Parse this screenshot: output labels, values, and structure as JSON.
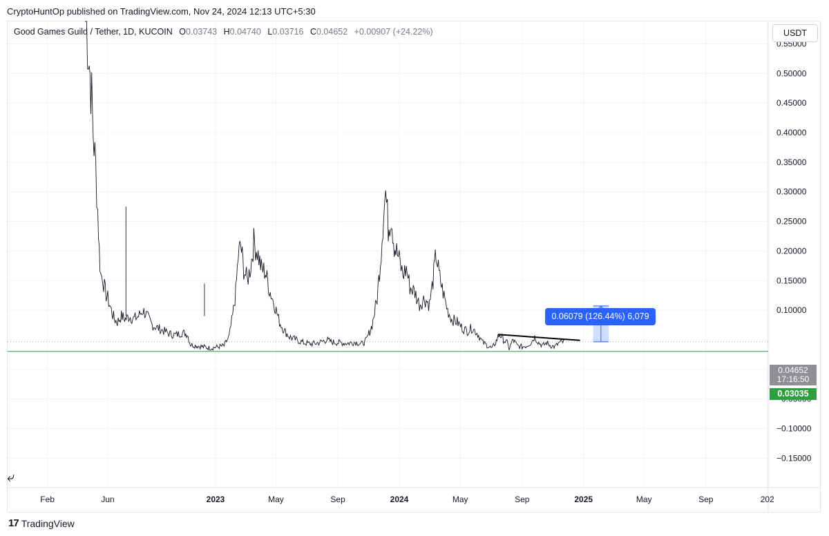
{
  "published": "CryptoHuntOp published on TradingView.com, Nov 24, 2024 12:13 UTC+5:30",
  "legend": {
    "symbol": "Good Games Guild / Tether, 1D, KUCOIN",
    "open_label": "O",
    "open": "0.03743",
    "high_label": "H",
    "high": "0.04740",
    "low_label": "L",
    "low": "0.03716",
    "close_label": "C",
    "close": "0.04652",
    "change": "+0.00907 (+24.22%)"
  },
  "currency_button": "USDT",
  "price_box": {
    "price": "0.04652",
    "countdown": "17:16:50"
  },
  "support_level_label": "0.03035",
  "measure_label": "0.06079 (126.44%) 6,079",
  "footer": {
    "logo": "17",
    "brand": "TradingView"
  },
  "colors": {
    "price_line": "#131722",
    "support": "#2e9e3e",
    "measure": "#2962ff",
    "trendline": "#000000"
  },
  "chart_data": {
    "type": "line",
    "title": "Good Games Guild / Tether, 1D, KUCOIN",
    "y_ticks": [
      "0.55000",
      "0.50000",
      "0.45000",
      "0.40000",
      "0.35000",
      "0.30000",
      "0.25000",
      "0.20000",
      "0.15000",
      "0.10000",
      "−0.05000",
      "−0.10000",
      "−0.15000"
    ],
    "x_ticks": [
      {
        "label": "Feb",
        "date": "2022-02-01",
        "bold": false
      },
      {
        "label": "Jun",
        "date": "2022-06-01",
        "bold": false
      },
      {
        "label": "2023",
        "date": "2023-01-01",
        "bold": true
      },
      {
        "label": "May",
        "date": "2023-05-01",
        "bold": false
      },
      {
        "label": "Sep",
        "date": "2023-09-01",
        "bold": false
      },
      {
        "label": "2024",
        "date": "2024-01-01",
        "bold": true
      },
      {
        "label": "May",
        "date": "2024-05-01",
        "bold": false
      },
      {
        "label": "Sep",
        "date": "2024-09-01",
        "bold": false
      },
      {
        "label": "2025",
        "date": "2025-01-01",
        "bold": true
      },
      {
        "label": "May",
        "date": "2025-05-01",
        "bold": false
      },
      {
        "label": "Sep",
        "date": "2025-09-01",
        "bold": false
      },
      {
        "label": "202",
        "date": "2026-01-01",
        "bold": false
      }
    ],
    "ylim": [
      -0.15,
      0.6
    ],
    "grid": true,
    "series": [
      {
        "points": [
          [
            "2022-04-17",
            0.62
          ],
          [
            "2022-04-20",
            0.58
          ],
          [
            "2022-04-25",
            0.52
          ],
          [
            "2022-04-30",
            0.46
          ],
          [
            "2022-05-03",
            0.4
          ],
          [
            "2022-05-08",
            0.34
          ],
          [
            "2022-05-12",
            0.27
          ],
          [
            "2022-05-15",
            0.2
          ],
          [
            "2022-05-18",
            0.16
          ],
          [
            "2022-05-22",
            0.155
          ],
          [
            "2022-05-27",
            0.13
          ],
          [
            "2022-06-01",
            0.12
          ],
          [
            "2022-06-08",
            0.1
          ],
          [
            "2022-06-14",
            0.085
          ],
          [
            "2022-06-20",
            0.08
          ],
          [
            "2022-06-28",
            0.09
          ],
          [
            "2022-07-06",
            0.085
          ],
          [
            "2022-07-14",
            0.09
          ],
          [
            "2022-07-22",
            0.085
          ],
          [
            "2022-08-01",
            0.09
          ],
          [
            "2022-08-10",
            0.1
          ],
          [
            "2022-08-18",
            0.09
          ],
          [
            "2022-08-28",
            0.075
          ],
          [
            "2022-09-08",
            0.07
          ],
          [
            "2022-09-20",
            0.065
          ],
          [
            "2022-10-02",
            0.06
          ],
          [
            "2022-10-14",
            0.058
          ],
          [
            "2022-10-26",
            0.062
          ],
          [
            "2022-11-06",
            0.06
          ],
          [
            "2022-11-12",
            0.042
          ],
          [
            "2022-11-25",
            0.04
          ],
          [
            "2022-12-08",
            0.038
          ],
          [
            "2022-12-22",
            0.036
          ],
          [
            "2023-01-05",
            0.038
          ],
          [
            "2023-01-18",
            0.04
          ],
          [
            "2023-01-28",
            0.055
          ],
          [
            "2023-02-04",
            0.09
          ],
          [
            "2023-02-10",
            0.13
          ],
          [
            "2023-02-15",
            0.19
          ],
          [
            "2023-02-20",
            0.21
          ],
          [
            "2023-02-26",
            0.17
          ],
          [
            "2023-03-05",
            0.15
          ],
          [
            "2023-03-12",
            0.175
          ],
          [
            "2023-03-18",
            0.215
          ],
          [
            "2023-03-25",
            0.2
          ],
          [
            "2023-04-02",
            0.17
          ],
          [
            "2023-04-10",
            0.165
          ],
          [
            "2023-04-18",
            0.135
          ],
          [
            "2023-04-28",
            0.11
          ],
          [
            "2023-05-08",
            0.08
          ],
          [
            "2023-05-18",
            0.065
          ],
          [
            "2023-05-28",
            0.055
          ],
          [
            "2023-06-10",
            0.05
          ],
          [
            "2023-06-25",
            0.045
          ],
          [
            "2023-07-10",
            0.043
          ],
          [
            "2023-07-25",
            0.045
          ],
          [
            "2023-08-10",
            0.05
          ],
          [
            "2023-08-20",
            0.046
          ],
          [
            "2023-09-05",
            0.045
          ],
          [
            "2023-09-20",
            0.044
          ],
          [
            "2023-10-05",
            0.046
          ],
          [
            "2023-10-20",
            0.043
          ],
          [
            "2023-10-28",
            0.05
          ],
          [
            "2023-11-08",
            0.075
          ],
          [
            "2023-11-18",
            0.12
          ],
          [
            "2023-11-26",
            0.2
          ],
          [
            "2023-12-01",
            0.27
          ],
          [
            "2023-12-05",
            0.3
          ],
          [
            "2023-12-10",
            0.24
          ],
          [
            "2023-12-16",
            0.26
          ],
          [
            "2023-12-22",
            0.21
          ],
          [
            "2023-12-30",
            0.19
          ],
          [
            "2024-01-08",
            0.16
          ],
          [
            "2024-01-15",
            0.17
          ],
          [
            "2024-01-22",
            0.14
          ],
          [
            "2024-02-01",
            0.13
          ],
          [
            "2024-02-10",
            0.11
          ],
          [
            "2024-02-20",
            0.12
          ],
          [
            "2024-03-01",
            0.11
          ],
          [
            "2024-03-08",
            0.15
          ],
          [
            "2024-03-14",
            0.195
          ],
          [
            "2024-03-20",
            0.16
          ],
          [
            "2024-03-28",
            0.13
          ],
          [
            "2024-04-06",
            0.1
          ],
          [
            "2024-04-14",
            0.085
          ],
          [
            "2024-04-25",
            0.08
          ],
          [
            "2024-05-05",
            0.07
          ],
          [
            "2024-05-15",
            0.065
          ],
          [
            "2024-05-25",
            0.07
          ],
          [
            "2024-06-05",
            0.06
          ],
          [
            "2024-06-15",
            0.045
          ],
          [
            "2024-06-25",
            0.04
          ],
          [
            "2024-07-03",
            0.035
          ],
          [
            "2024-07-10",
            0.045
          ],
          [
            "2024-07-18",
            0.06
          ],
          [
            "2024-07-26",
            0.05
          ],
          [
            "2024-08-02",
            0.045
          ],
          [
            "2024-08-06",
            0.035
          ],
          [
            "2024-08-14",
            0.05
          ],
          [
            "2024-08-22",
            0.04
          ],
          [
            "2024-09-01",
            0.038
          ],
          [
            "2024-09-10",
            0.04
          ],
          [
            "2024-09-18",
            0.045
          ],
          [
            "2024-09-26",
            0.055
          ],
          [
            "2024-10-04",
            0.045
          ],
          [
            "2024-10-12",
            0.04
          ],
          [
            "2024-10-20",
            0.045
          ],
          [
            "2024-10-28",
            0.04
          ],
          [
            "2024-11-05",
            0.038
          ],
          [
            "2024-11-14",
            0.045
          ],
          [
            "2024-11-24",
            0.04652
          ]
        ]
      }
    ],
    "spikes": [
      [
        "2022-07-07",
        0.275
      ],
      [
        "2022-12-10",
        0.145
      ]
    ],
    "support_level": 0.03035,
    "current_price": 0.04652,
    "trendline": [
      [
        "2024-07-15",
        0.059
      ],
      [
        "2024-12-25",
        0.049
      ]
    ],
    "measure": {
      "from_date": "2025-01-20",
      "to_date": "2025-02-20",
      "from_price": 0.04652,
      "to_price": 0.1073
    }
  }
}
